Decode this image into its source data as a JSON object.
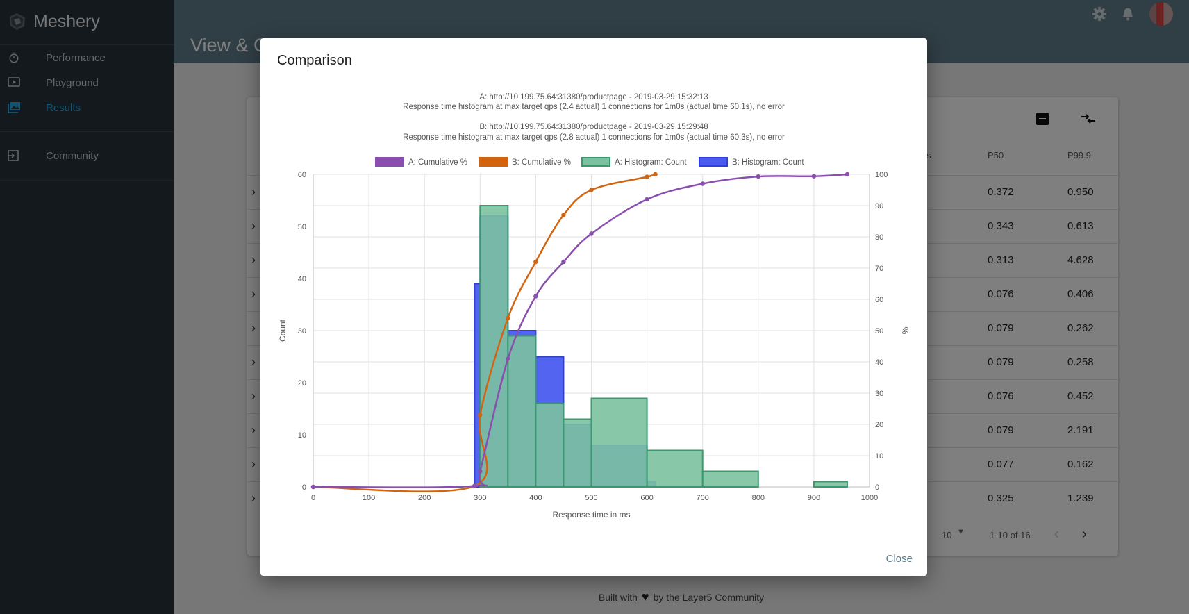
{
  "app": {
    "name": "Meshery"
  },
  "sidebar": {
    "items": [
      {
        "label": "Performance",
        "icon": "timer-icon"
      },
      {
        "label": "Playground",
        "icon": "play-icon"
      },
      {
        "label": "Results",
        "icon": "image-icon",
        "active": true
      },
      {
        "label": "Community",
        "icon": "exit-icon"
      }
    ]
  },
  "header": {
    "title_partial": "View & C"
  },
  "table": {
    "headers": [
      "s",
      "P50",
      "P99.9"
    ],
    "rows": [
      {
        "p50": "0.372",
        "p999": "0.950"
      },
      {
        "p50": "0.343",
        "p999": "0.613"
      },
      {
        "p50": "0.313",
        "p999": "4.628"
      },
      {
        "p50": "0.076",
        "p999": "0.406"
      },
      {
        "p50": "0.079",
        "p999": "0.262"
      },
      {
        "p50": "0.079",
        "p999": "0.258"
      },
      {
        "p50": "0.076",
        "p999": "0.452"
      },
      {
        "p50": "0.079",
        "p999": "2.191"
      },
      {
        "p50": "0.077",
        "p999": "0.162"
      },
      {
        "p50": "0.325",
        "p999": "1.239"
      }
    ],
    "pagination": {
      "rows_per_page": "10",
      "range": "1-10 of 16"
    }
  },
  "footer": {
    "prefix": "Built with",
    "suffix": "by the Layer5 Community"
  },
  "modal": {
    "title": "Comparison",
    "close_label": "Close"
  },
  "colors": {
    "cumA": "#8a4fae",
    "cumB": "#d2640f",
    "histA_fill": "#7cc1a0",
    "histA_stroke": "#3a9a6e",
    "histB_fill": "#4a5cf0",
    "histB_stroke": "#2e3fe0"
  },
  "chart_data": {
    "type": "bar",
    "title_lines": [
      "A: http://10.199.75.64:31380/productpage - 2019-03-29 15:32:13",
      "Response time histogram at max target qps (2.4 actual) 1 connections for 1m0s (actual time 60.1s), no error",
      "B: http://10.199.75.64:31380/productpage - 2019-03-29 15:29:48",
      "Response time histogram at max target qps (2.8 actual) 1 connections for 1m0s (actual time 60.3s), no error"
    ],
    "xlabel": "Response time in ms",
    "ylabel": "Count",
    "y2label": "%",
    "xlim": [
      0,
      1000
    ],
    "xticks": [
      0,
      100,
      200,
      300,
      400,
      500,
      600,
      700,
      800,
      900,
      1000
    ],
    "ylim": [
      0,
      60
    ],
    "yticks": [
      0,
      10,
      20,
      30,
      40,
      50,
      60
    ],
    "y2lim": [
      0,
      100
    ],
    "y2ticks": [
      0,
      10,
      20,
      30,
      40,
      50,
      60,
      70,
      80,
      90,
      100
    ],
    "grid": true,
    "legend_position": "top",
    "series": [
      {
        "name": "A: Cumulative %",
        "kind": "line",
        "axis": "right",
        "x": [
          0,
          290,
          300,
          350,
          400,
          450,
          500,
          600,
          700,
          800,
          900,
          960
        ],
        "values": [
          0,
          0.3,
          5,
          41,
          61,
          72,
          81,
          92,
          97,
          99.3,
          99.4,
          100
        ]
      },
      {
        "name": "B: Cumulative %",
        "kind": "line",
        "axis": "right",
        "x": [
          0,
          290,
          300,
          350,
          400,
          450,
          500,
          600,
          615
        ],
        "values": [
          0,
          0.3,
          23,
          54,
          72,
          87,
          95,
          99.2,
          100
        ]
      },
      {
        "name": "A: Histogram: Count",
        "kind": "bar",
        "bins": [
          [
            300,
            350
          ],
          [
            350,
            400
          ],
          [
            400,
            450
          ],
          [
            450,
            500
          ],
          [
            500,
            600
          ],
          [
            600,
            700
          ],
          [
            700,
            800
          ],
          [
            800,
            900
          ],
          [
            900,
            960
          ]
        ],
        "values": [
          54,
          29,
          16,
          13,
          17,
          7,
          3,
          0,
          1
        ]
      },
      {
        "name": "B: Histogram: Count",
        "kind": "bar",
        "bins": [
          [
            290,
            300
          ],
          [
            300,
            350
          ],
          [
            350,
            400
          ],
          [
            400,
            450
          ],
          [
            450,
            500
          ],
          [
            500,
            600
          ],
          [
            600,
            615
          ]
        ],
        "values": [
          39,
          52,
          30,
          25,
          12,
          8,
          1
        ]
      }
    ]
  }
}
